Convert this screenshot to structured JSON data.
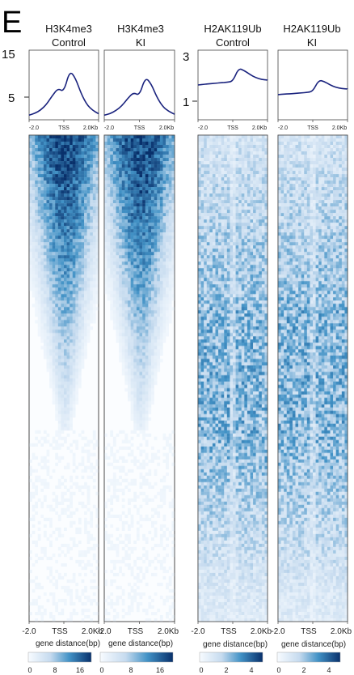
{
  "panel_letter": "E",
  "chart_data": {
    "type": "heatmap",
    "groups": [
      {
        "colorbar": {
          "min": 0,
          "max": 20,
          "ticks": [
            "0",
            "8",
            "16"
          ]
        },
        "profile_yticks": [
          "15",
          "5"
        ],
        "columns": [
          {
            "title_line1": "H3K4me3",
            "title_line2": "Control",
            "profile": [
              1.0,
              1.4,
              2.1,
              3.3,
              5.2,
              6.8,
              6.0,
              10.6,
              9.0,
              5.6,
              3.2,
              2.0,
              1.3
            ]
          },
          {
            "title_line1": "H3K4me3",
            "title_line2": "KI",
            "profile": [
              1.0,
              1.3,
              2.0,
              3.0,
              4.6,
              5.9,
              5.2,
              9.2,
              7.8,
              4.8,
              2.8,
              1.8,
              1.2
            ]
          }
        ]
      },
      {
        "colorbar": {
          "min": 0,
          "max": 5,
          "ticks": [
            "0",
            "2",
            "4"
          ]
        },
        "profile_yticks": [
          "3",
          "1"
        ],
        "columns": [
          {
            "title_line1": "H2AK119Ub",
            "title_line2": "Control",
            "profile": [
              1.75,
              1.78,
              1.8,
              1.82,
              1.85,
              1.86,
              1.9,
              2.45,
              2.35,
              2.18,
              2.05,
              1.98,
              1.95
            ]
          },
          {
            "title_line1": "H2AK119Ub",
            "title_line2": "KI",
            "profile": [
              1.35,
              1.37,
              1.38,
              1.4,
              1.42,
              1.44,
              1.48,
              1.95,
              1.9,
              1.75,
              1.65,
              1.6,
              1.58
            ]
          }
        ]
      }
    ],
    "profile_xticks": [
      "-2.0",
      "TSS",
      "2.0Kb"
    ],
    "heatmap_xticks": [
      "-2.0",
      "TSS",
      "2.0Kb"
    ],
    "xlabel": "gene distance(bp)",
    "colors": {
      "low": "#ffffff",
      "mid": "#6aaed6",
      "high": "#08306b",
      "profile_line": "#1a237e"
    }
  }
}
